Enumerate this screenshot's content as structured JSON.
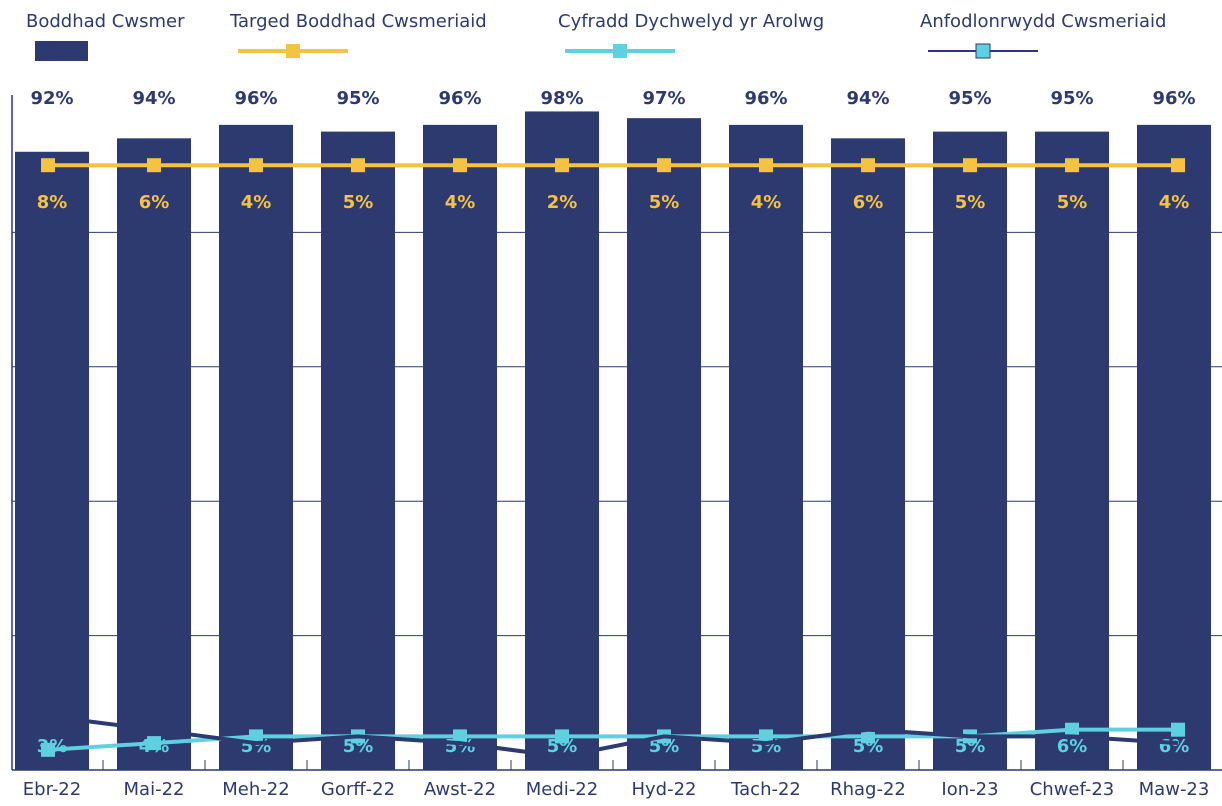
{
  "chart_data": {
    "type": "bar",
    "categories": [
      "Ebr-22",
      "Mai-22",
      "Meh-22",
      "Gorff-22",
      "Awst-22",
      "Medi-22",
      "Hyd-22",
      "Tach-22",
      "Rhag-22",
      "Ion-23",
      "Chwef-23",
      "Maw-23"
    ],
    "series": [
      {
        "name": "Boddhad Cwsmer",
        "type": "bar",
        "color": "#2c3a70",
        "label_color": "#2c3a70",
        "values": [
          92,
          94,
          96,
          95,
          96,
          98,
          97,
          96,
          94,
          95,
          95,
          96
        ],
        "value_labels": [
          "92%",
          "94%",
          "96%",
          "95%",
          "96%",
          "98%",
          "97%",
          "96%",
          "94%",
          "95%",
          "95%",
          "96%"
        ]
      },
      {
        "name": "Targed Boddhad Cwsmeriaid",
        "type": "line",
        "color": "#f5c242",
        "marker_color": "#f5c242",
        "values": [
          90,
          90,
          90,
          90,
          90,
          90,
          90,
          90,
          90,
          90,
          90,
          90
        ]
      },
      {
        "name": "Cyfradd Dychwelyd yr Arolwg",
        "type": "line",
        "color": "#5fd0e0",
        "marker_color": "#5fd0e0",
        "label_color": "#5fd0e0",
        "values": [
          3,
          4,
          5,
          5,
          5,
          5,
          5,
          5,
          5,
          5,
          6,
          6
        ],
        "value_labels": [
          "3%",
          "4%",
          "5%",
          "5%",
          "5%",
          "5%",
          "5%",
          "5%",
          "5%",
          "5%",
          "6%",
          "6%"
        ]
      },
      {
        "name": "Anfodlonrwydd Cwsmeriaid",
        "type": "line",
        "color": "#2c3a70",
        "marker_color": "#5fd0e0",
        "label_color": "#f5c242",
        "values": [
          8,
          6,
          4,
          5,
          4,
          2,
          5,
          4,
          6,
          5,
          5,
          4
        ],
        "value_labels": [
          "8%",
          "6%",
          "4%",
          "5%",
          "4%",
          "2%",
          "5%",
          "4%",
          "6%",
          "5%",
          "5%",
          "4%"
        ]
      }
    ],
    "ylim": [
      0,
      100
    ],
    "yticks": [
      0,
      20,
      40,
      60,
      80
    ],
    "grid": true
  }
}
